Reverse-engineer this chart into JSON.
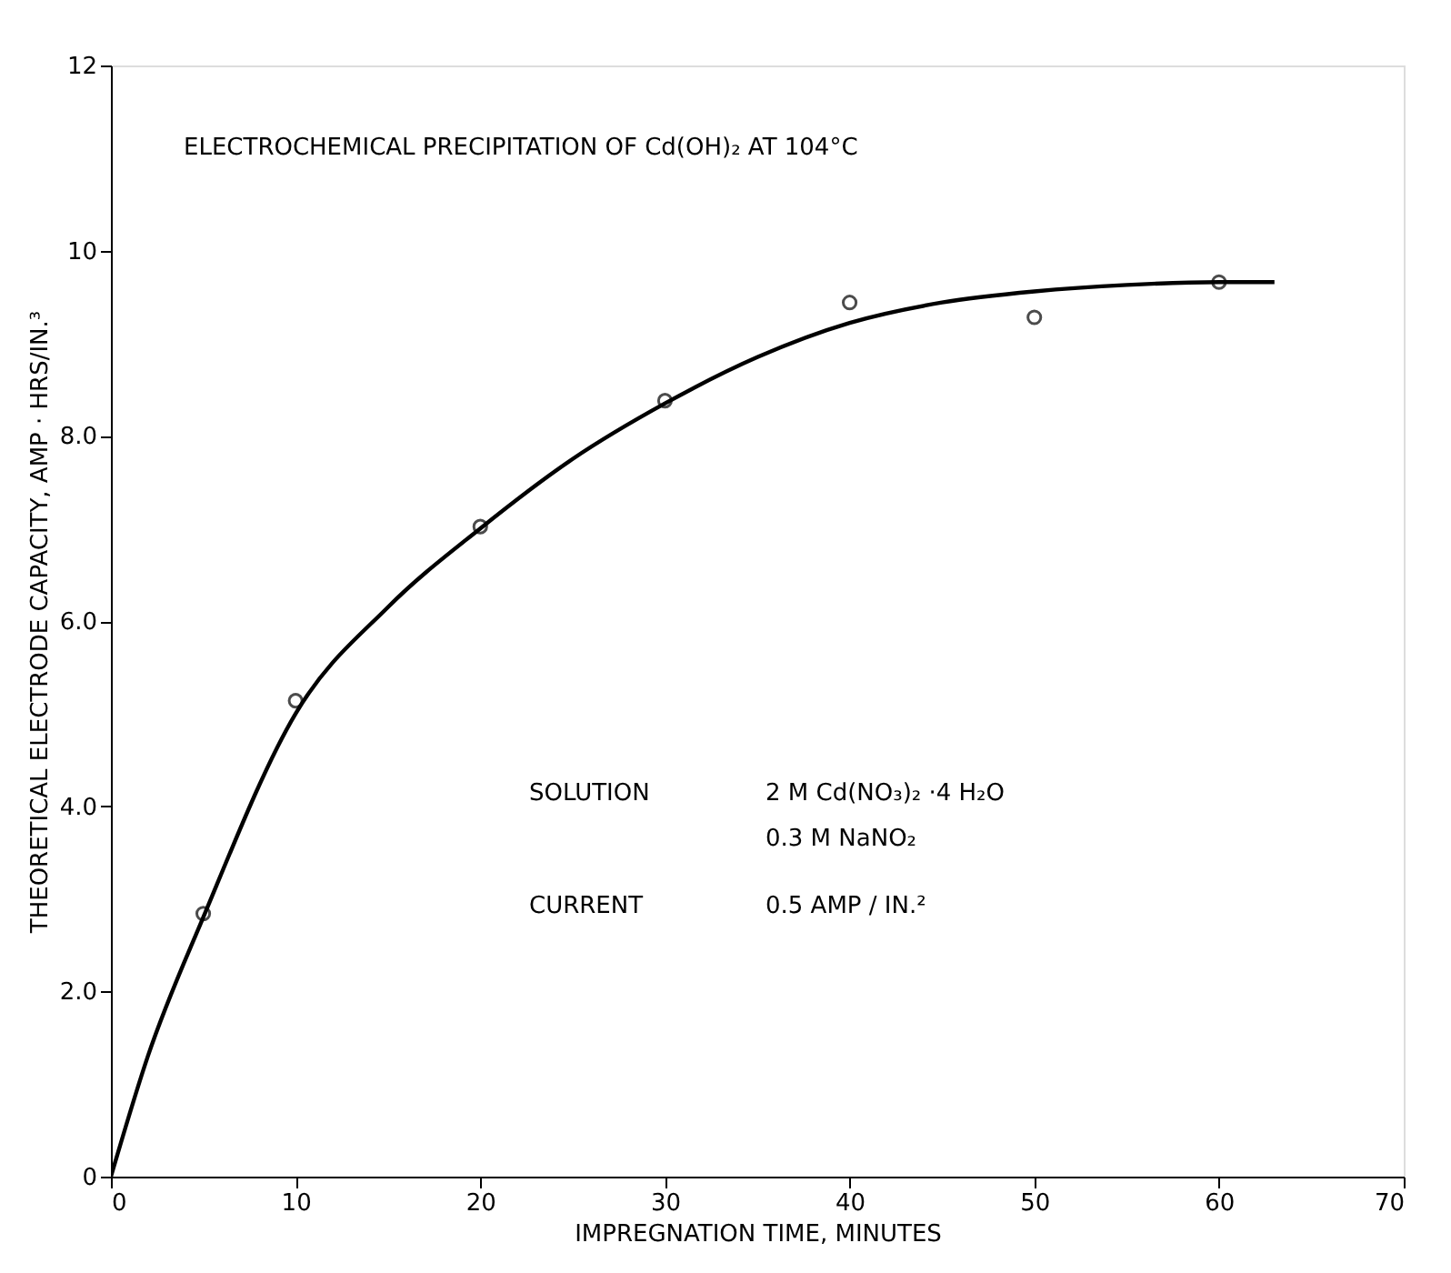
{
  "chart_data": {
    "type": "scatter",
    "title": "ELECTROCHEMICAL PRECIPITATION OF Cd(OH)₂ AT 104°C",
    "xlabel": "IMPREGNATION TIME, MINUTES",
    "ylabel": "THEORETICAL ELECTRODE CAPACITY, AMP · HRS/IN.³",
    "x": [
      5,
      10,
      20,
      30,
      40,
      50,
      60
    ],
    "series": [
      {
        "color": "#000000",
        "marker": "circle",
        "values": [
          2.84,
          5.14,
          7.02,
          8.38,
          9.44,
          9.28,
          9.66
        ]
      },
      {
        "type": "line",
        "color": "#000000",
        "line_style": "solid",
        "x": [
          0,
          2,
          5,
          10,
          15,
          20,
          25,
          30,
          35,
          40,
          45,
          50,
          55,
          60,
          63
        ],
        "values": [
          0,
          1.3,
          2.8,
          5.0,
          6.15,
          7.0,
          7.75,
          8.35,
          8.85,
          9.22,
          9.44,
          9.56,
          9.63,
          9.66,
          9.66
        ]
      }
    ],
    "xlim": [
      0,
      70
    ],
    "xticks": [
      0,
      10,
      20,
      30,
      40,
      50,
      60,
      70
    ],
    "ylim": [
      0,
      12
    ],
    "yticks": [
      0,
      {
        "value": 2,
        "label": "2.0"
      },
      {
        "value": 4,
        "label": "4.0"
      },
      {
        "value": 6,
        "label": "6.0"
      },
      {
        "value": 8,
        "label": "8.0"
      },
      10,
      12
    ],
    "grid": false,
    "annotations": [
      "SOLUTION",
      "2 M Cd(NO₃)₂ ·4 H₂O",
      "0.3 M NaNO₂",
      "CURRENT",
      "0.5 AMP / IN.²"
    ]
  }
}
